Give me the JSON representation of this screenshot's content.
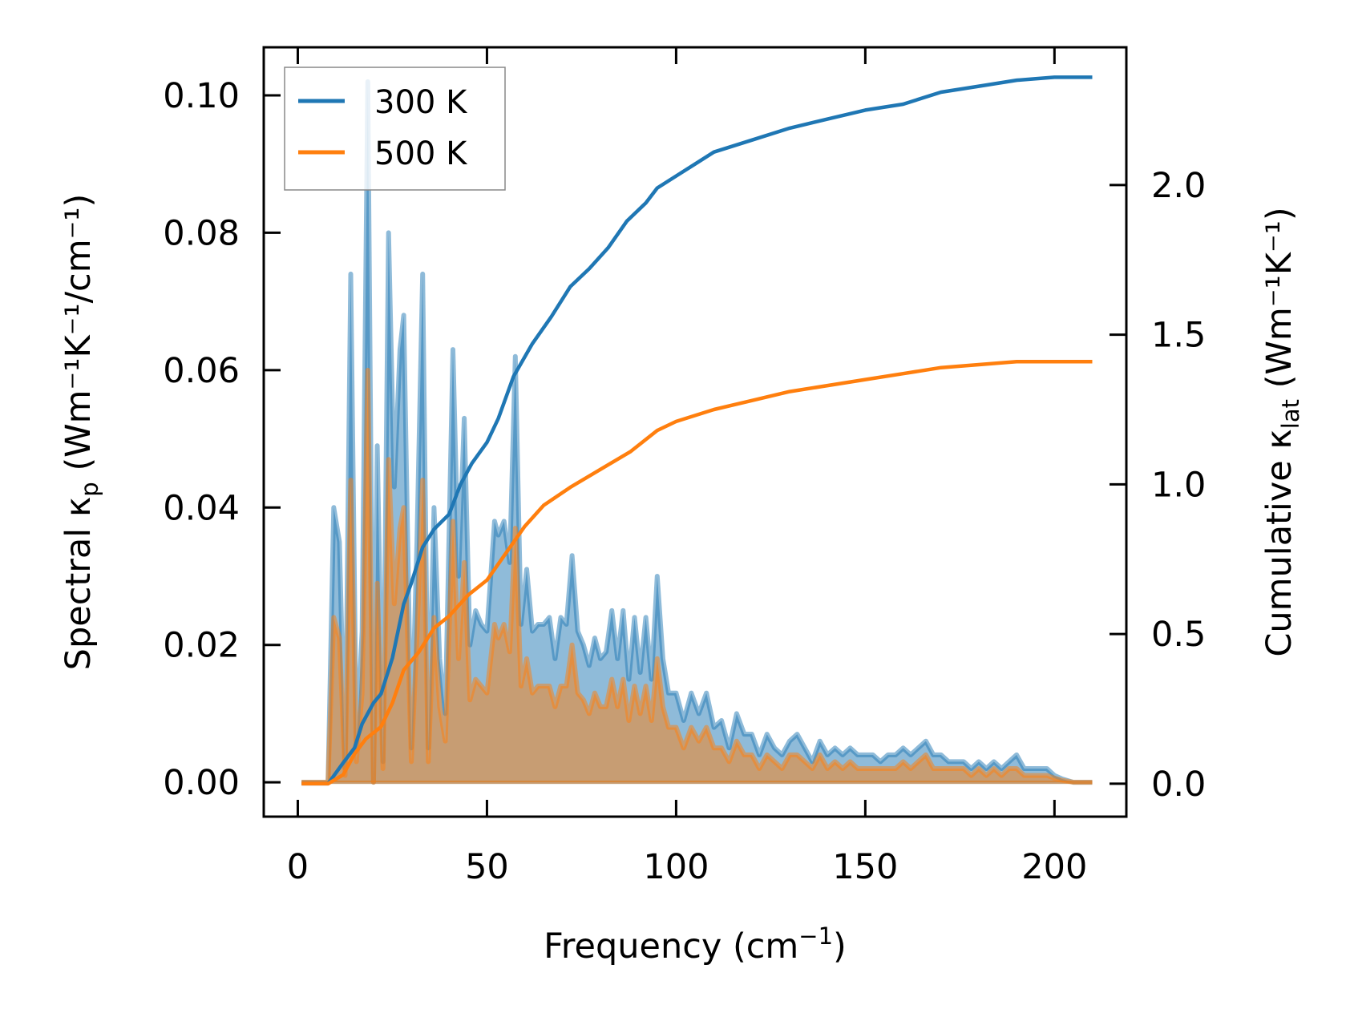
{
  "chart_data": {
    "type": "line",
    "title": "",
    "xlabel": {
      "prefix": "Frequency (cm",
      "sup": "−1",
      "suffix": ")"
    },
    "ylabel_left": {
      "prefix": "Spectral κ",
      "sub": "p",
      "suffix": " (Wm⁻¹K⁻¹/cm⁻¹)"
    },
    "ylabel_right": {
      "prefix": "Cumulative κ",
      "sub": "lat",
      "suffix": " (Wm⁻¹K⁻¹)"
    },
    "xlim": [
      -9,
      219
    ],
    "ylim_left": [
      -0.005,
      0.107
    ],
    "ylim_right": [
      -0.11,
      2.46
    ],
    "xticks": [
      0,
      50,
      100,
      150,
      200
    ],
    "xtick_labels": [
      "0",
      "50",
      "100",
      "150",
      "200"
    ],
    "yticks_left": [
      0,
      0.02,
      0.04,
      0.06,
      0.08,
      0.1
    ],
    "ytick_labels_left": [
      "0.00",
      "0.02",
      "0.04",
      "0.06",
      "0.08",
      "0.10"
    ],
    "yticks_right": [
      0,
      0.5,
      1.0,
      1.5,
      2.0
    ],
    "ytick_labels_right": [
      "0.0",
      "0.5",
      "1.0",
      "1.5",
      "2.0"
    ],
    "grid": false,
    "legend": {
      "placement": "top-left",
      "entries": [
        "300 K",
        "500 K"
      ]
    },
    "colors": {
      "300 K": "#1f77b4",
      "500 K": "#ff7f0e"
    },
    "spectral": {
      "x": [
        1,
        4,
        8,
        9.5,
        11,
        12.5,
        14,
        15.5,
        17,
        18.5,
        20,
        21,
        22.5,
        24,
        25.5,
        27,
        28,
        30,
        31.5,
        33,
        34.5,
        36,
        37.5,
        39,
        41,
        42.5,
        44,
        45.5,
        47,
        48.5,
        50,
        52,
        53,
        54.5,
        56,
        57.5,
        59,
        60.5,
        62,
        63.5,
        65,
        66.5,
        68,
        69.5,
        71,
        72.5,
        74,
        75.5,
        77,
        78.5,
        80,
        81.5,
        83,
        84.5,
        86,
        87.5,
        89,
        90.5,
        92,
        93.5,
        95,
        96.5,
        98,
        100,
        102,
        104,
        106,
        108,
        110,
        112,
        114,
        116,
        118,
        120,
        122,
        124,
        126,
        128,
        130,
        132,
        134,
        136,
        138,
        140,
        142,
        144,
        146,
        148,
        150,
        152,
        154,
        156,
        158,
        160,
        162,
        164,
        166,
        168,
        170,
        172,
        174,
        176,
        178,
        180,
        182,
        184,
        186,
        188,
        190,
        192,
        194,
        196,
        198,
        200,
        202,
        205,
        210
      ],
      "series": [
        {
          "name": "300 K",
          "values": [
            0,
            0,
            0,
            0.04,
            0.035,
            0.002,
            0.074,
            0.005,
            0.022,
            0.102,
            0.0,
            0.049,
            0.003,
            0.08,
            0.043,
            0.063,
            0.068,
            0.005,
            0.035,
            0.074,
            0.005,
            0.04,
            0.018,
            0.01,
            0.063,
            0.03,
            0.053,
            0.02,
            0.025,
            0.023,
            0.022,
            0.038,
            0.036,
            0.038,
            0.032,
            0.062,
            0.023,
            0.031,
            0.022,
            0.023,
            0.023,
            0.024,
            0.018,
            0.024,
            0.023,
            0.033,
            0.022,
            0.02,
            0.017,
            0.021,
            0.018,
            0.019,
            0.025,
            0.018,
            0.025,
            0.015,
            0.024,
            0.016,
            0.024,
            0.015,
            0.03,
            0.018,
            0.013,
            0.013,
            0.009,
            0.013,
            0.01,
            0.013,
            0.008,
            0.009,
            0.005,
            0.01,
            0.007,
            0.007,
            0.004,
            0.007,
            0.005,
            0.004,
            0.006,
            0.007,
            0.005,
            0.003,
            0.006,
            0.004,
            0.005,
            0.004,
            0.005,
            0.004,
            0.004,
            0.004,
            0.003,
            0.004,
            0.004,
            0.005,
            0.004,
            0.005,
            0.006,
            0.004,
            0.004,
            0.003,
            0.003,
            0.003,
            0.002,
            0.003,
            0.002,
            0.003,
            0.002,
            0.003,
            0.004,
            0.002,
            0.002,
            0.002,
            0.002,
            0.001,
            0.0005,
            0,
            0
          ]
        },
        {
          "name": "500 K",
          "values": [
            0,
            0,
            0,
            0.024,
            0.021,
            0.001,
            0.044,
            0.003,
            0.013,
            0.06,
            0.0,
            0.029,
            0.002,
            0.047,
            0.026,
            0.037,
            0.04,
            0.003,
            0.021,
            0.044,
            0.003,
            0.024,
            0.011,
            0.006,
            0.038,
            0.018,
            0.032,
            0.012,
            0.015,
            0.014,
            0.013,
            0.023,
            0.021,
            0.023,
            0.019,
            0.037,
            0.014,
            0.018,
            0.013,
            0.014,
            0.014,
            0.014,
            0.011,
            0.014,
            0.014,
            0.02,
            0.013,
            0.012,
            0.01,
            0.013,
            0.011,
            0.011,
            0.015,
            0.011,
            0.015,
            0.009,
            0.014,
            0.01,
            0.014,
            0.009,
            0.018,
            0.011,
            0.008,
            0.008,
            0.005,
            0.008,
            0.006,
            0.008,
            0.005,
            0.005,
            0.003,
            0.006,
            0.004,
            0.004,
            0.002,
            0.004,
            0.003,
            0.002,
            0.004,
            0.004,
            0.003,
            0.002,
            0.004,
            0.002,
            0.003,
            0.002,
            0.003,
            0.002,
            0.002,
            0.002,
            0.002,
            0.002,
            0.002,
            0.003,
            0.002,
            0.003,
            0.004,
            0.002,
            0.002,
            0.002,
            0.002,
            0.002,
            0.001,
            0.002,
            0.001,
            0.002,
            0.001,
            0.002,
            0.002,
            0.001,
            0.001,
            0.001,
            0.001,
            0.0006,
            0.0003,
            0,
            0
          ]
        }
      ]
    },
    "cumulative": {
      "series": [
        {
          "name": "300 K",
          "x": [
            1,
            8,
            12,
            15,
            17,
            20,
            22,
            25,
            28,
            30,
            33,
            36,
            40,
            43,
            46,
            50,
            53,
            57,
            62,
            67,
            72,
            77,
            82,
            87,
            92,
            95,
            100,
            105,
            110,
            120,
            130,
            140,
            150,
            160,
            170,
            180,
            190,
            200,
            210
          ],
          "values": [
            0,
            0,
            0.07,
            0.12,
            0.2,
            0.27,
            0.3,
            0.42,
            0.6,
            0.67,
            0.79,
            0.85,
            0.9,
            1.0,
            1.07,
            1.14,
            1.22,
            1.36,
            1.47,
            1.56,
            1.66,
            1.72,
            1.79,
            1.88,
            1.94,
            1.99,
            2.03,
            2.07,
            2.11,
            2.15,
            2.19,
            2.22,
            2.25,
            2.27,
            2.31,
            2.33,
            2.35,
            2.36,
            2.36
          ]
        },
        {
          "name": "500 K",
          "x": [
            1,
            8,
            12,
            15,
            18,
            22,
            25,
            28,
            32,
            36,
            40,
            45,
            50,
            55,
            60,
            65,
            72,
            80,
            88,
            95,
            100,
            110,
            120,
            130,
            140,
            150,
            160,
            170,
            180,
            190,
            200,
            210
          ],
          "values": [
            0,
            0,
            0.03,
            0.1,
            0.15,
            0.19,
            0.27,
            0.38,
            0.44,
            0.52,
            0.56,
            0.63,
            0.68,
            0.77,
            0.86,
            0.93,
            0.99,
            1.05,
            1.11,
            1.18,
            1.21,
            1.25,
            1.28,
            1.31,
            1.33,
            1.35,
            1.37,
            1.39,
            1.4,
            1.41,
            1.41,
            1.41
          ]
        }
      ]
    }
  }
}
